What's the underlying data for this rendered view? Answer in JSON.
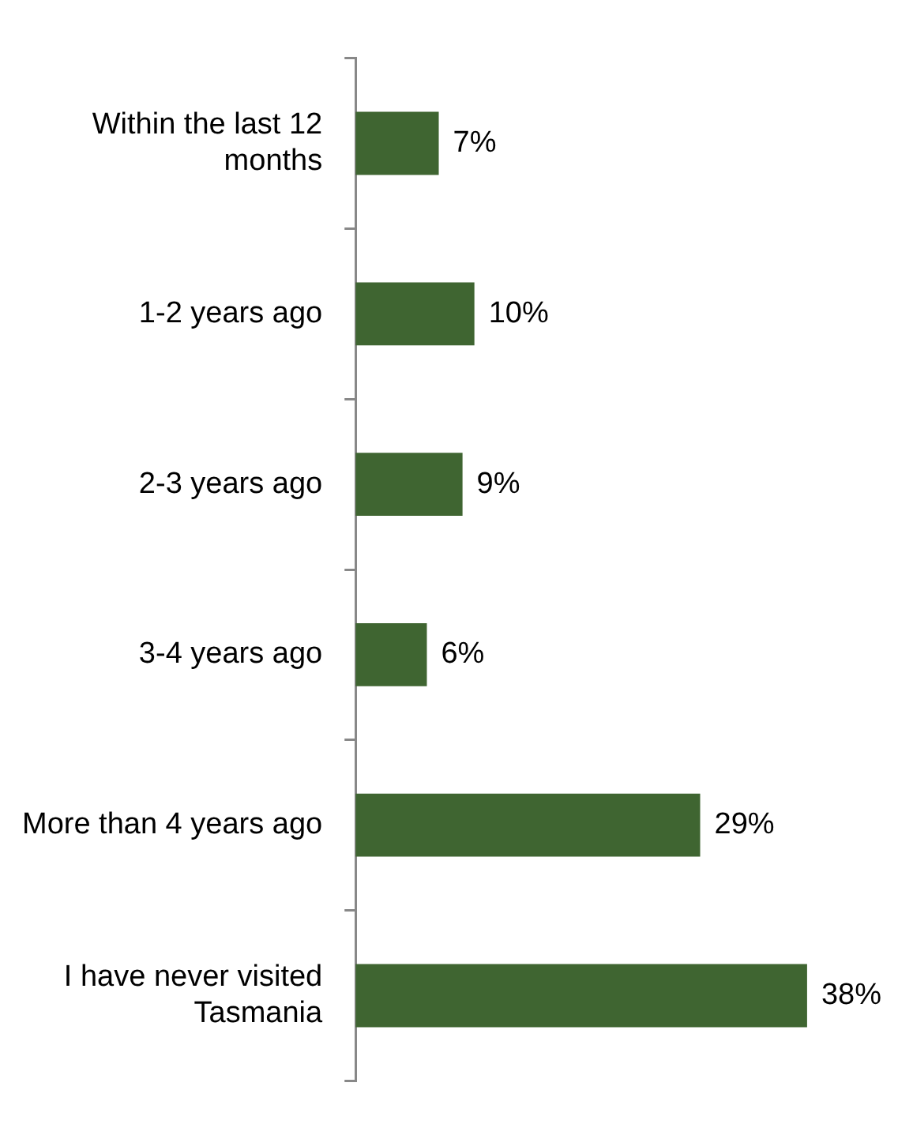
{
  "chart_data": {
    "type": "bar",
    "orientation": "horizontal",
    "categories": [
      "Within the last 12 months",
      "1-2 years ago",
      "2-3 years ago",
      "3-4 years ago",
      "More than 4 years ago",
      "I have never visited Tasmania"
    ],
    "values": [
      7,
      10,
      9,
      6,
      29,
      38
    ],
    "value_labels": [
      "7%",
      "10%",
      "9%",
      "6%",
      "29%",
      "38%"
    ],
    "color": "#3f6531",
    "grid": false,
    "legend": false
  }
}
